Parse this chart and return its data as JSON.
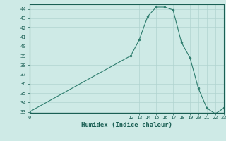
{
  "xlabel": "Humidex (Indice chaleur)",
  "ylabel": "",
  "x_values": [
    0,
    12,
    13,
    14,
    15,
    16,
    17,
    18,
    19,
    20,
    21,
    22,
    23
  ],
  "y_values": [
    33,
    39,
    40.7,
    43.2,
    44.2,
    44.2,
    43.9,
    40.4,
    38.8,
    35.5,
    33.4,
    32.8,
    33.4
  ],
  "line_color": "#2e7d6e",
  "marker_color": "#2e7d6e",
  "bg_color": "#ceeae6",
  "grid_color": "#b0d4d0",
  "axis_color": "#1a5f54",
  "ylim": [
    33,
    44.5
  ],
  "xlim": [
    0,
    23
  ],
  "yticks": [
    33,
    34,
    35,
    36,
    37,
    38,
    39,
    40,
    41,
    42,
    43,
    44
  ],
  "xticks": [
    0,
    12,
    13,
    14,
    15,
    16,
    17,
    18,
    19,
    20,
    21,
    22,
    23
  ]
}
